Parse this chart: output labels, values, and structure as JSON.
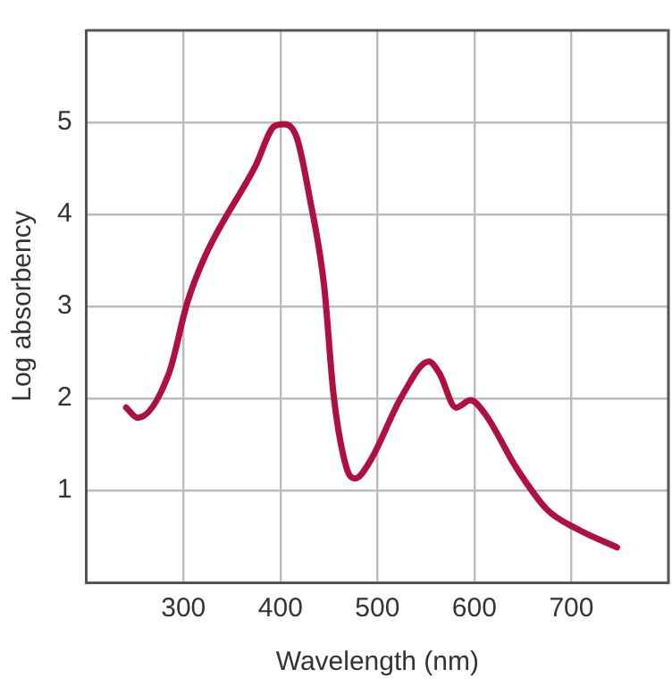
{
  "chart_data": {
    "type": "line",
    "xlabel": "Wavelength (nm)",
    "ylabel": "Log absorbency",
    "xlim": [
      200,
      800
    ],
    "ylim": [
      0,
      6
    ],
    "xticks": [
      300,
      400,
      500,
      600,
      700
    ],
    "yticks": [
      1,
      2,
      3,
      4,
      5
    ],
    "grid": true,
    "legend": false,
    "marker": "none",
    "line_style": "solid",
    "series": [
      {
        "color": "#b0103f",
        "x": [
          241,
          253,
          285,
          304,
          323,
          374,
          394,
          404,
          417,
          430,
          445,
          455,
          468,
          477,
          492,
          525,
          553,
          564,
          581,
          596,
          611,
          643,
          675,
          706,
          747
        ],
        "values": [
          1.9,
          1.79,
          2.27,
          3.04,
          3.56,
          4.52,
          4.96,
          4.98,
          4.83,
          4.19,
          3.23,
          2.02,
          1.25,
          1.13,
          1.31,
          2.02,
          2.4,
          2.27,
          1.9,
          1.98,
          1.83,
          1.25,
          0.79,
          0.58,
          0.38
        ]
      }
    ]
  }
}
